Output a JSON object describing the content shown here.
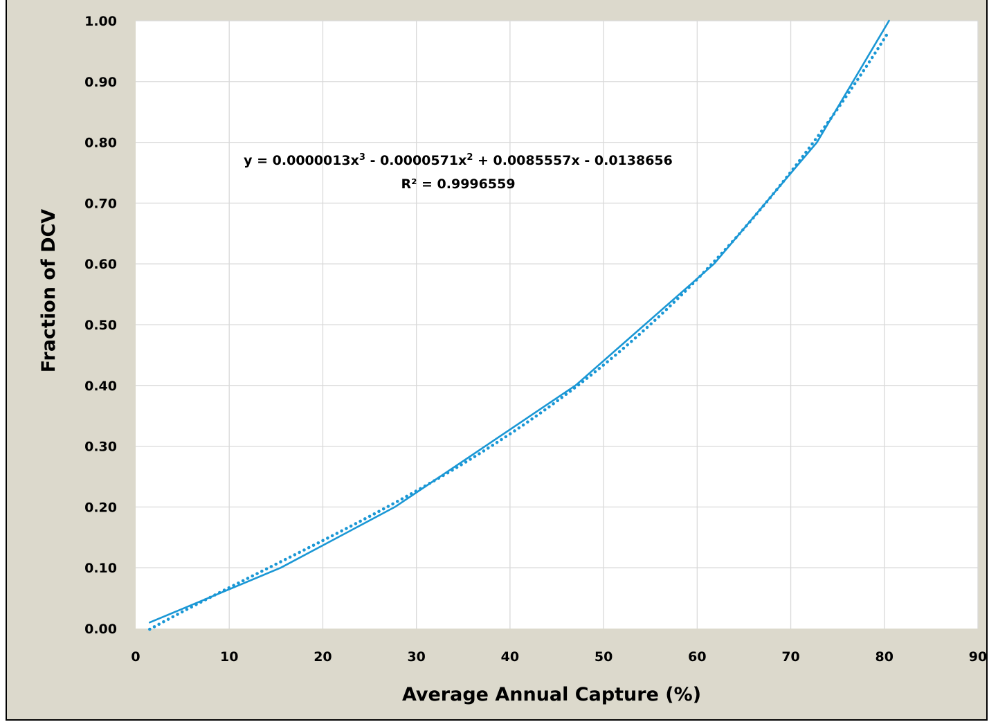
{
  "chart_data": {
    "type": "line",
    "title": "",
    "xlabel": "Average Annual Capture (%)",
    "ylabel": "Fraction of DCV",
    "xlim": [
      0,
      90
    ],
    "ylim": [
      0,
      1.0
    ],
    "x_ticks": [
      0,
      10,
      20,
      30,
      40,
      50,
      60,
      70,
      80,
      90
    ],
    "y_ticks": [
      0.0,
      0.1,
      0.2,
      0.3,
      0.4,
      0.5,
      0.6,
      0.7,
      0.8,
      0.9,
      1.0
    ],
    "x_tick_labels": [
      "0",
      "10",
      "20",
      "30",
      "40",
      "50",
      "60",
      "70",
      "80",
      "90"
    ],
    "y_tick_labels": [
      "0.00",
      "0.10",
      "0.20",
      "0.30",
      "0.40",
      "0.50",
      "0.60",
      "0.70",
      "0.80",
      "0.90",
      "1.00"
    ],
    "grid": true,
    "colors": {
      "series": "#1a97d5",
      "background": "#dcd9cc",
      "plot_area": "#ffffff",
      "grid": "#d9d9d9"
    },
    "series": [
      {
        "style": "solid",
        "points": [
          [
            1.5,
            0.01
          ],
          [
            15.5,
            0.1
          ],
          [
            27.7,
            0.2
          ],
          [
            47.0,
            0.4
          ],
          [
            61.8,
            0.6
          ],
          [
            72.8,
            0.8
          ],
          [
            80.5,
            1.0
          ]
        ]
      },
      {
        "style": "dotted",
        "trendline": "polynomial-3",
        "coefficients": {
          "a3": 1.3e-06,
          "a2": -5.71e-05,
          "a1": 0.0085557,
          "a0": -0.0138656
        },
        "x_range": [
          1.5,
          80.5
        ]
      }
    ],
    "annotations": [
      {
        "line1_prefix": "y = 0.0000013x",
        "line1_sup1": "3",
        "line1_mid": " - 0.0000571x",
        "line1_sup2": "2",
        "line1_suffix": " + 0.0085557x  - 0.0138656",
        "line2": "R² = 0.9996559"
      }
    ]
  }
}
